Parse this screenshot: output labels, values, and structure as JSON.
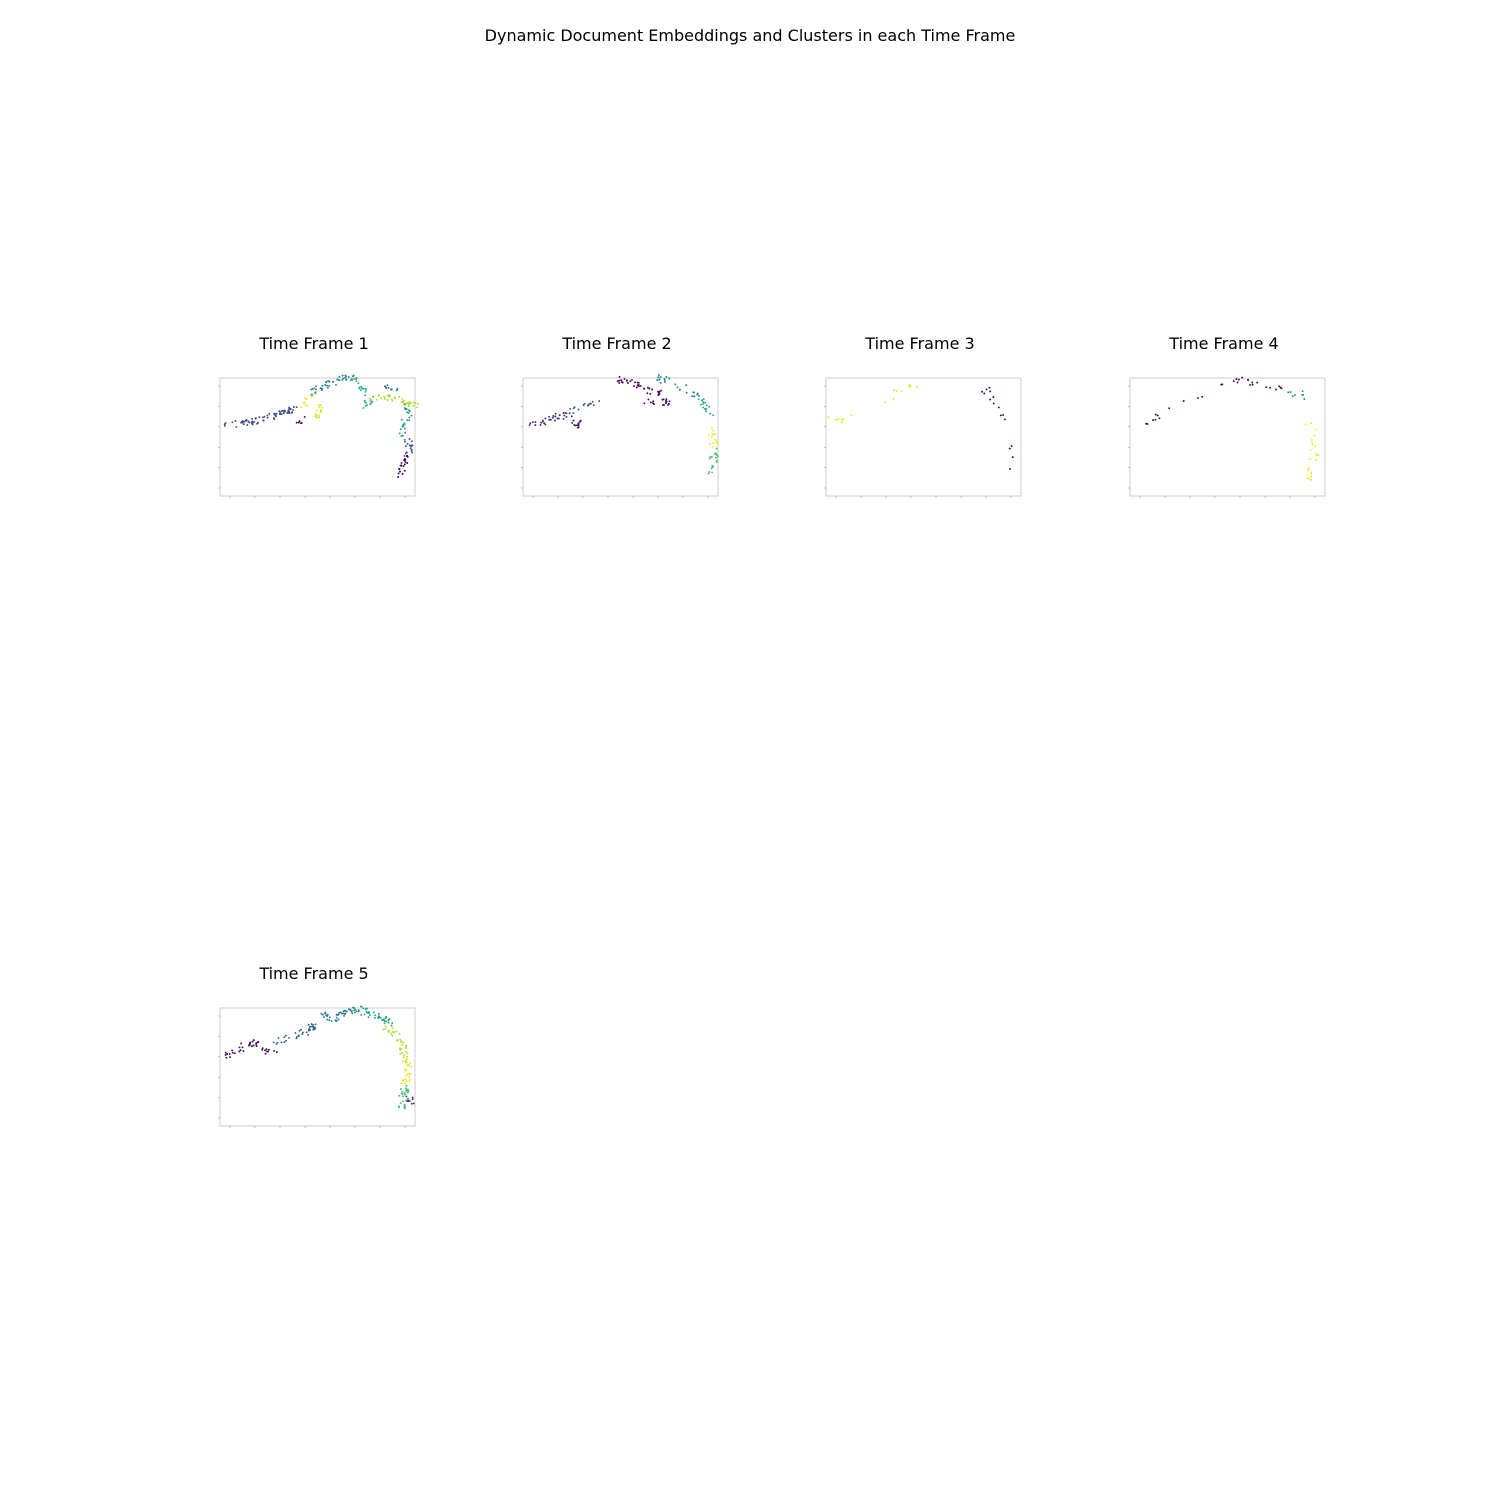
{
  "title": "Dynamic Document Embeddings and Clusters in each Time Frame",
  "chart_data": [
    {
      "type": "scatter",
      "title": "Time Frame 1",
      "grid": false,
      "colormap": "viridis",
      "xlim": [
        -25,
        6
      ],
      "ylim": [
        -12,
        4
      ],
      "trails": [
        {
          "cluster": 0.22,
          "path": [
            [
              -24,
              -2.3
            ],
            [
              -21,
              -2.2
            ],
            [
              -18,
              -1.6
            ],
            [
              -15,
              -0.6
            ],
            [
              -13,
              -0.1
            ]
          ],
          "n": 75
        },
        {
          "cluster": 0.95,
          "path": [
            [
              -12,
              -0.5
            ],
            [
              -11,
              1.2
            ],
            [
              -10,
              1.8
            ],
            [
              -9,
              -0.6
            ],
            [
              -10,
              -1.4
            ]
          ],
          "n": 28
        },
        {
          "cluster": 0.45,
          "path": [
            [
              -10,
              2.0
            ],
            [
              -8,
              3.2
            ],
            [
              -6,
              3.8
            ],
            [
              -4,
              4.1
            ]
          ],
          "n": 40
        },
        {
          "cluster": 0.62,
          "path": [
            [
              -4,
              4.1
            ],
            [
              -3,
              3.2
            ],
            [
              -2,
              2.2
            ],
            [
              -1,
              1.0
            ],
            [
              -2,
              0.2
            ]
          ],
          "n": 28
        },
        {
          "cluster": 0.88,
          "path": [
            [
              -1,
              1.2
            ],
            [
              1,
              1.4
            ],
            [
              3,
              1.0
            ],
            [
              5,
              0.6
            ],
            [
              6,
              0.2
            ]
          ],
          "n": 40
        },
        {
          "cluster": 0.35,
          "path": [
            [
              1,
              3.0
            ],
            [
              2,
              2.6
            ],
            [
              3,
              2.2
            ]
          ],
          "n": 10
        },
        {
          "cluster": 0.55,
          "path": [
            [
              5,
              0.5
            ],
            [
              5,
              -1.0
            ],
            [
              4,
              -2.5
            ],
            [
              4,
              -4.2
            ]
          ],
          "n": 26
        },
        {
          "cluster": 0.25,
          "path": [
            [
              5,
              -4.0
            ],
            [
              5.2,
              -5.2
            ],
            [
              4.8,
              -6.6
            ]
          ],
          "n": 18
        },
        {
          "cluster": 0.0,
          "path": [
            [
              4.6,
              -6.8
            ],
            [
              4.0,
              -8.0
            ],
            [
              3.6,
              -9.6
            ]
          ],
          "n": 22
        },
        {
          "cluster": 0.0,
          "path": [
            [
              -12.5,
              -1.8
            ],
            [
              -11.5,
              -1.6
            ]
          ],
          "n": 6
        }
      ]
    },
    {
      "type": "scatter",
      "title": "Time Frame 2",
      "grid": false,
      "colormap": "viridis",
      "xlim": [
        -25,
        6
      ],
      "ylim": [
        -12,
        4
      ],
      "trails": [
        {
          "cluster": 0.1,
          "path": [
            [
              -24,
              -2.2
            ],
            [
              -21,
              -1.8
            ],
            [
              -18,
              -0.8
            ]
          ],
          "n": 30
        },
        {
          "cluster": 0.28,
          "path": [
            [
              -18,
              -0.8
            ],
            [
              -15,
              0.3
            ],
            [
              -13,
              1.0
            ]
          ],
          "n": 16
        },
        {
          "cluster": 0.05,
          "path": [
            [
              -17,
              -1.4
            ],
            [
              -16,
              -2.4
            ]
          ],
          "n": 14
        },
        {
          "cluster": 0.02,
          "path": [
            [
              -10,
              3.8
            ],
            [
              -8,
              3.6
            ],
            [
              -6,
              2.4
            ],
            [
              -3,
              1.8
            ],
            [
              -2,
              0.8
            ],
            [
              -6,
              0.6
            ]
          ],
          "n": 55
        },
        {
          "cluster": 0.45,
          "path": [
            [
              -4,
              4.2
            ],
            [
              -2,
              3.6
            ],
            [
              0,
              3.0
            ],
            [
              2,
              2.0
            ],
            [
              3,
              1.4
            ]
          ],
          "n": 26
        },
        {
          "cluster": 0.6,
          "path": [
            [
              3,
              1.4
            ],
            [
              4,
              0.2
            ],
            [
              5,
              -1.6
            ]
          ],
          "n": 16
        },
        {
          "cluster": 0.98,
          "path": [
            [
              4.8,
              -2.6
            ],
            [
              5.2,
              -4.0
            ],
            [
              5.6,
              -5.6
            ]
          ],
          "n": 14
        },
        {
          "cluster": 0.72,
          "path": [
            [
              5.6,
              -5.8
            ],
            [
              5.2,
              -7.2
            ],
            [
              4.4,
              -9.2
            ]
          ],
          "n": 20
        }
      ]
    },
    {
      "type": "scatter",
      "title": "Time Frame 3",
      "grid": false,
      "colormap": "viridis",
      "xlim": [
        -25,
        6
      ],
      "ylim": [
        -12,
        4
      ],
      "trails": [
        {
          "cluster": 0.97,
          "path": [
            [
              -24,
              -1.0
            ],
            [
              -23,
              -2.0
            ],
            [
              -22,
              -1.5
            ],
            [
              -20,
              0.0
            ]
          ],
          "n": 8
        },
        {
          "cluster": 0.97,
          "path": [
            [
              -16,
              0.8
            ],
            [
              -14,
              1.6
            ],
            [
              -13,
              3.2
            ],
            [
              -10,
              2.8
            ],
            [
              -12,
              0.6
            ]
          ],
          "n": 10
        },
        {
          "cluster": 0.0,
          "path": [
            [
              0,
              1.6
            ],
            [
              1,
              2.4
            ],
            [
              2,
              1.0
            ],
            [
              3,
              0.2
            ],
            [
              2.5,
              -1.2
            ],
            [
              4,
              -1.6
            ]
          ],
          "n": 12
        },
        {
          "cluster": 0.0,
          "path": [
            [
              4,
              -4.4
            ],
            [
              4,
              -6.4
            ],
            [
              5,
              -5.6
            ],
            [
              4.2,
              -9.6
            ]
          ],
          "n": 4
        }
      ]
    },
    {
      "type": "scatter",
      "title": "Time Frame 4",
      "grid": false,
      "colormap": "viridis",
      "xlim": [
        -25,
        6
      ],
      "ylim": [
        -12,
        4
      ],
      "trails": [
        {
          "cluster": 0.0,
          "path": [
            [
              -24,
              -2.4
            ],
            [
              -20,
              -1.2
            ],
            [
              -16,
              0.8
            ],
            [
              -12,
              2.4
            ],
            [
              -8,
              3.8
            ],
            [
              -4,
              3.2
            ],
            [
              -1,
              2.6
            ]
          ],
          "n": 30
        },
        {
          "cluster": 0.5,
          "path": [
            [
              0.5,
              1.6
            ],
            [
              2,
              2.0
            ],
            [
              3,
              1.4
            ]
          ],
          "n": 8
        },
        {
          "cluster": 0.98,
          "path": [
            [
              3,
              -1.0
            ],
            [
              4,
              -3.6
            ],
            [
              4.4,
              -6.4
            ],
            [
              3.6,
              -9.8
            ]
          ],
          "n": 22
        }
      ]
    },
    {
      "type": "scatter",
      "title": "Time Frame 5",
      "grid": false,
      "colormap": "viridis",
      "xlim": [
        -25,
        6
      ],
      "ylim": [
        -12,
        4
      ],
      "trails": [
        {
          "cluster": 0.02,
          "path": [
            [
              -24,
              -2.4
            ],
            [
              -22,
              -1.8
            ],
            [
              -20,
              -0.6
            ],
            [
              -18,
              -2.0
            ],
            [
              -16,
              -1.6
            ]
          ],
          "n": 40
        },
        {
          "cluster": 0.32,
          "path": [
            [
              -16,
              -0.6
            ],
            [
              -13,
              0.2
            ],
            [
              -11,
              1.0
            ],
            [
              -10,
              1.8
            ]
          ],
          "n": 40
        },
        {
          "cluster": 0.42,
          "path": [
            [
              -9,
              3.2
            ],
            [
              -7,
              2.6
            ],
            [
              -5,
              3.4
            ],
            [
              -3,
              4.0
            ]
          ],
          "n": 45
        },
        {
          "cluster": 0.55,
          "path": [
            [
              -3,
              4.0
            ],
            [
              -1,
              3.0
            ],
            [
              1,
              2.6
            ],
            [
              2,
              1.4
            ]
          ],
          "n": 40
        },
        {
          "cluster": 0.88,
          "path": [
            [
              1,
              1.2
            ],
            [
              3,
              0.4
            ],
            [
              4,
              -1.0
            ],
            [
              4.6,
              -3.0
            ]
          ],
          "n": 40
        },
        {
          "cluster": 0.97,
          "path": [
            [
              4.6,
              -3.0
            ],
            [
              5,
              -4.6
            ],
            [
              4.4,
              -6.2
            ]
          ],
          "n": 26
        },
        {
          "cluster": 0.7,
          "path": [
            [
              4.4,
              -6.4
            ],
            [
              4.2,
              -7.8
            ],
            [
              3.8,
              -9.8
            ]
          ],
          "n": 28
        },
        {
          "cluster": 0.18,
          "path": [
            [
              4.2,
              -8.0
            ],
            [
              5.4,
              -8.6
            ]
          ],
          "n": 10
        }
      ]
    }
  ]
}
